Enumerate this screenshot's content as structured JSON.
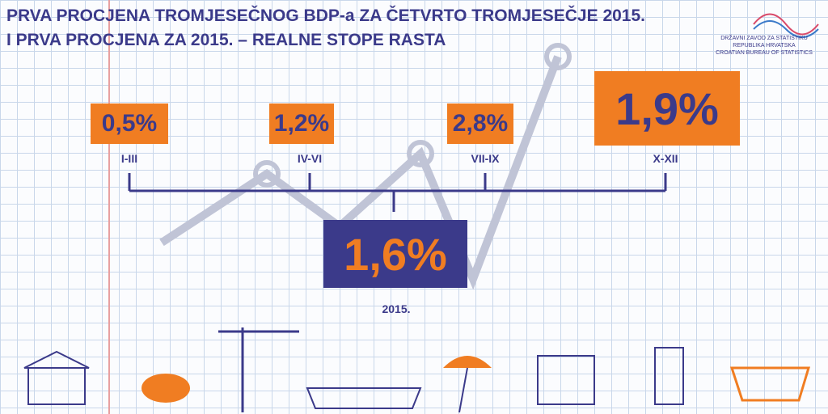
{
  "header": {
    "title_lines": [
      "PRVA PROCJENA TROMJESEČNOG BDP-a ZA ČETVRTO TROMJESEČJE 2015.",
      "I PRVA PROCJENA ZA 2015. – REALNE STOPE RASTA"
    ]
  },
  "logo": {
    "lines": [
      "DRŽAVNI ZAVOD ZA STATISTIKU",
      "REPUBLIKA HRVATSKA",
      "CROATIAN BUREAU OF STATISTICS"
    ]
  },
  "quarters": [
    {
      "value": "0,5%",
      "label": "I-III"
    },
    {
      "value": "1,2%",
      "label": "IV-VI"
    },
    {
      "value": "2,8%",
      "label": "VII-IX"
    },
    {
      "value": "1,9%",
      "label": "X-XII"
    }
  ],
  "annual": {
    "value": "1,6%",
    "label": "2015."
  }
}
